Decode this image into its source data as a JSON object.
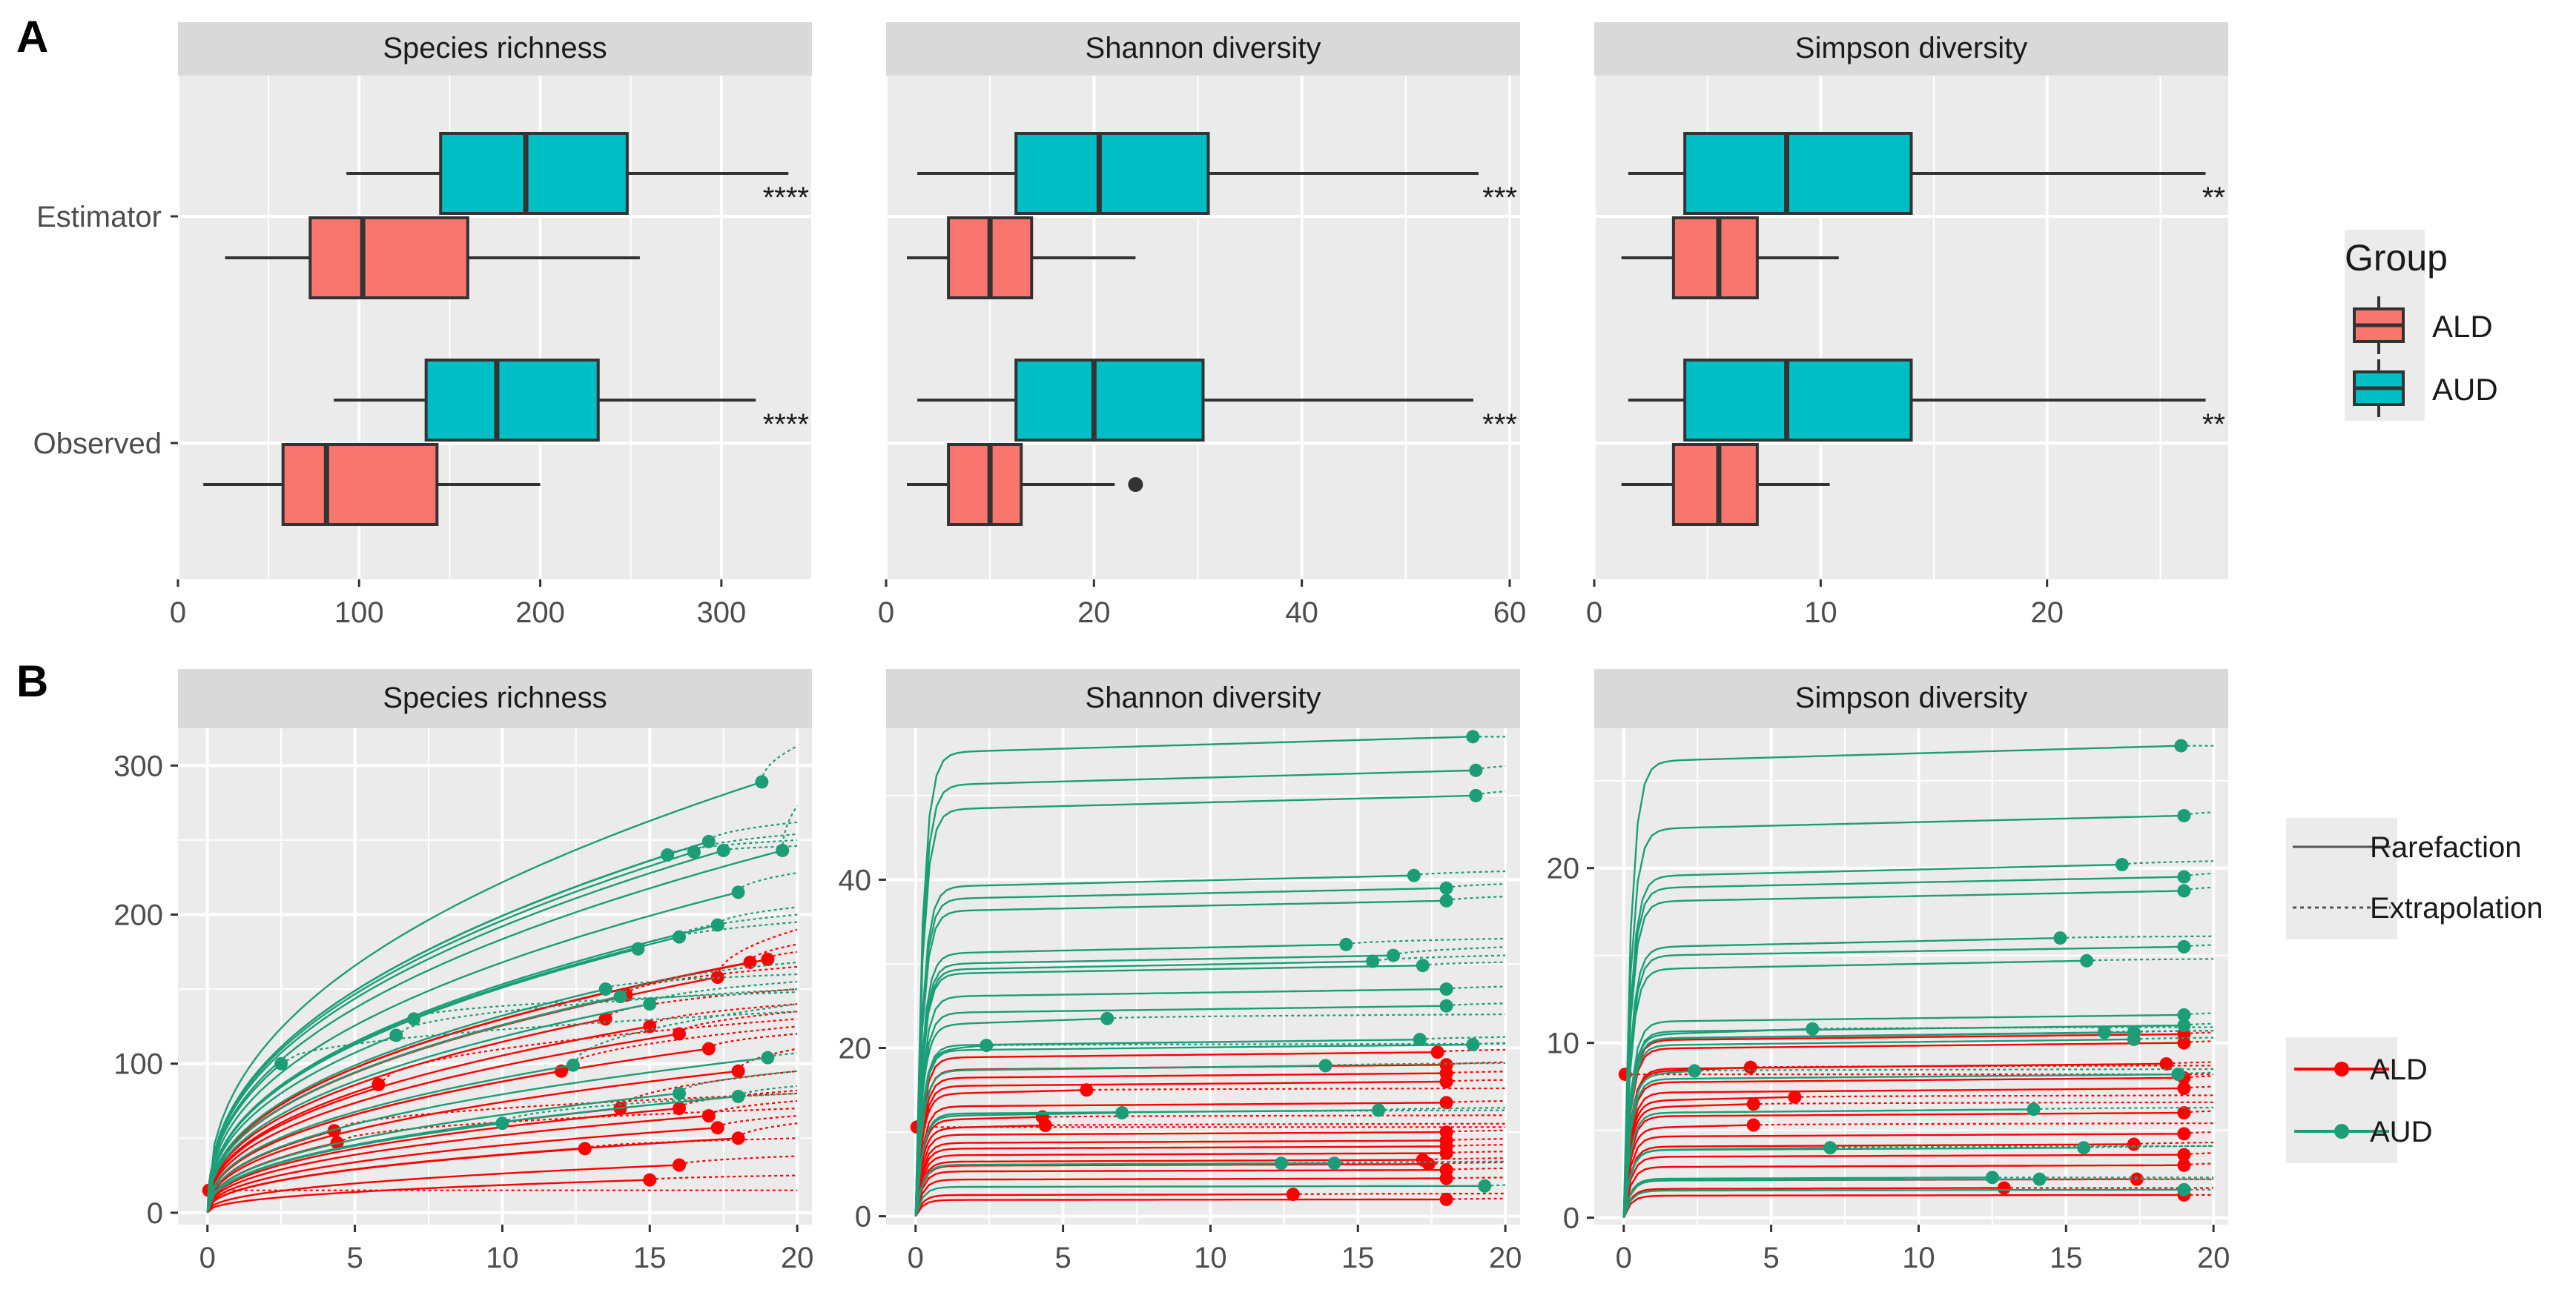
{
  "figure": {
    "panel_a_label": "A",
    "panel_b_label": "B",
    "legend_a_title": "Group",
    "legend_line_items": [
      "Rarefaction",
      "Extrapolation"
    ],
    "groups": [
      "ALD",
      "AUD"
    ],
    "colors": {
      "box_ald": "#F8766D",
      "box_aud": "#00BFC4",
      "line_ald": "#FF0000",
      "line_aud": "#1B9E77",
      "panel_bg": "#EBEBEB",
      "strip_bg": "#D9D9D9",
      "grid": "#FFFFFF"
    }
  },
  "chart_data": [
    {
      "type": "boxplot",
      "panel": "A",
      "title": "Species richness",
      "orientation": "horizontal",
      "categories": [
        "Estimator",
        "Observed"
      ],
      "xlim": [
        0,
        350
      ],
      "xticks": [
        0,
        100,
        200,
        300
      ],
      "boxes": [
        {
          "category": "Estimator",
          "group": "AUD",
          "min": 93,
          "q1": 145,
          "median": 192,
          "q3": 248,
          "max": 337,
          "outliers": []
        },
        {
          "category": "Estimator",
          "group": "ALD",
          "min": 26,
          "q1": 73,
          "median": 102,
          "q3": 160,
          "max": 255,
          "outliers": []
        },
        {
          "category": "Observed",
          "group": "AUD",
          "min": 86,
          "q1": 137,
          "median": 176,
          "q3": 232,
          "max": 319,
          "outliers": []
        },
        {
          "category": "Observed",
          "group": "ALD",
          "min": 14,
          "q1": 58,
          "median": 82,
          "q3": 143,
          "max": 200,
          "outliers": []
        }
      ],
      "significance": {
        "Estimator": "****",
        "Observed": "****"
      }
    },
    {
      "type": "boxplot",
      "panel": "A",
      "title": "Shannon diversity",
      "orientation": "horizontal",
      "categories": [
        "Estimator",
        "Observed"
      ],
      "xlim": [
        0,
        61
      ],
      "xticks": [
        0,
        20,
        40,
        60
      ],
      "boxes": [
        {
          "category": "Estimator",
          "group": "AUD",
          "min": 3,
          "q1": 12.5,
          "median": 20.5,
          "q3": 31,
          "max": 57,
          "outliers": []
        },
        {
          "category": "Estimator",
          "group": "ALD",
          "min": 2,
          "q1": 6,
          "median": 10,
          "q3": 14,
          "max": 24,
          "outliers": []
        },
        {
          "category": "Observed",
          "group": "AUD",
          "min": 3,
          "q1": 12.5,
          "median": 20,
          "q3": 30.5,
          "max": 56.5,
          "outliers": []
        },
        {
          "category": "Observed",
          "group": "ALD",
          "min": 2,
          "q1": 6,
          "median": 10,
          "q3": 13,
          "max": 22,
          "outliers": [
            24
          ]
        }
      ],
      "significance": {
        "Estimator": "***",
        "Observed": "***"
      }
    },
    {
      "type": "boxplot",
      "panel": "A",
      "title": "Simpson diversity",
      "orientation": "horizontal",
      "categories": [
        "Estimator",
        "Observed"
      ],
      "xlim": [
        0,
        28
      ],
      "xticks": [
        0,
        10,
        20
      ],
      "boxes": [
        {
          "category": "Estimator",
          "group": "AUD",
          "min": 1.5,
          "q1": 4,
          "median": 8.5,
          "q3": 14,
          "max": 27,
          "outliers": []
        },
        {
          "category": "Estimator",
          "group": "ALD",
          "min": 1.2,
          "q1": 3.5,
          "median": 5.5,
          "q3": 7.2,
          "max": 10.8,
          "outliers": []
        },
        {
          "category": "Observed",
          "group": "AUD",
          "min": 1.5,
          "q1": 4,
          "median": 8.5,
          "q3": 14,
          "max": 27,
          "outliers": []
        },
        {
          "category": "Observed",
          "group": "ALD",
          "min": 1.2,
          "q1": 3.5,
          "median": 5.5,
          "q3": 7.2,
          "max": 10.4,
          "outliers": []
        }
      ],
      "significance": {
        "Estimator": "**",
        "Observed": "**"
      }
    },
    {
      "type": "line",
      "panel": "B",
      "title": "Species richness",
      "xlim": [
        -1,
        20.5
      ],
      "ylim": [
        -8,
        325
      ],
      "xticks": [
        0,
        5,
        10,
        15,
        20
      ],
      "yticks": [
        0,
        100,
        200,
        300
      ],
      "curve_kind": "power",
      "curves": [
        {
          "group": "AUD",
          "n": 18.8,
          "obs": 289,
          "end": 313
        },
        {
          "group": "AUD",
          "n": 19.5,
          "obs": 243,
          "end": 273
        },
        {
          "group": "AUD",
          "n": 17.0,
          "obs": 249,
          "end": 262
        },
        {
          "group": "AUD",
          "n": 16.5,
          "obs": 242,
          "end": 254
        },
        {
          "group": "AUD",
          "n": 15.6,
          "obs": 240,
          "end": 250
        },
        {
          "group": "AUD",
          "n": 17.5,
          "obs": 243,
          "end": 246
        },
        {
          "group": "AUD",
          "n": 18.0,
          "obs": 215,
          "end": 228
        },
        {
          "group": "AUD",
          "n": 17.3,
          "obs": 193,
          "end": 205
        },
        {
          "group": "AUD",
          "n": 16.0,
          "obs": 185,
          "end": 200
        },
        {
          "group": "AUD",
          "n": 14.6,
          "obs": 177,
          "end": 195
        },
        {
          "group": "AUD",
          "n": 14.0,
          "obs": 145,
          "end": 168
        },
        {
          "group": "AUD",
          "n": 13.5,
          "obs": 150,
          "end": 160
        },
        {
          "group": "AUD",
          "n": 15.0,
          "obs": 140,
          "end": 155
        },
        {
          "group": "AUD",
          "n": 6.4,
          "obs": 119,
          "end": 150
        },
        {
          "group": "AUD",
          "n": 7.0,
          "obs": 130,
          "end": 148
        },
        {
          "group": "AUD",
          "n": 12.4,
          "obs": 99,
          "end": 140
        },
        {
          "group": "AUD",
          "n": 19.0,
          "obs": 104,
          "end": 107
        },
        {
          "group": "AUD",
          "n": 2.5,
          "obs": 100,
          "end": 135
        },
        {
          "group": "AUD",
          "n": 16.0,
          "obs": 80,
          "end": 95
        },
        {
          "group": "AUD",
          "n": 18.0,
          "obs": 78,
          "end": 85
        },
        {
          "group": "AUD",
          "n": 10.0,
          "obs": 60,
          "end": 80
        },
        {
          "group": "ALD",
          "n": 17.3,
          "obs": 158,
          "end": 190
        },
        {
          "group": "ALD",
          "n": 18.4,
          "obs": 168,
          "end": 180
        },
        {
          "group": "ALD",
          "n": 19.0,
          "obs": 170,
          "end": 175
        },
        {
          "group": "ALD",
          "n": 14.2,
          "obs": 146,
          "end": 165
        },
        {
          "group": "ALD",
          "n": 13.5,
          "obs": 130,
          "end": 150
        },
        {
          "group": "ALD",
          "n": 15.0,
          "obs": 125,
          "end": 140
        },
        {
          "group": "ALD",
          "n": 16.0,
          "obs": 120,
          "end": 135
        },
        {
          "group": "ALD",
          "n": 5.8,
          "obs": 86,
          "end": 130
        },
        {
          "group": "ALD",
          "n": 12.0,
          "obs": 95,
          "end": 125
        },
        {
          "group": "ALD",
          "n": 17.0,
          "obs": 110,
          "end": 120
        },
        {
          "group": "ALD",
          "n": 18.0,
          "obs": 95,
          "end": 110
        },
        {
          "group": "ALD",
          "n": 14.0,
          "obs": 70,
          "end": 95
        },
        {
          "group": "ALD",
          "n": 16.0,
          "obs": 70,
          "end": 82
        },
        {
          "group": "ALD",
          "n": 4.3,
          "obs": 55,
          "end": 80
        },
        {
          "group": "ALD",
          "n": 17.0,
          "obs": 65,
          "end": 75
        },
        {
          "group": "ALD",
          "n": 4.4,
          "obs": 47,
          "end": 70
        },
        {
          "group": "ALD",
          "n": 17.3,
          "obs": 57,
          "end": 65
        },
        {
          "group": "ALD",
          "n": 18.0,
          "obs": 50,
          "end": 60
        },
        {
          "group": "ALD",
          "n": 12.8,
          "obs": 43,
          "end": 50
        },
        {
          "group": "ALD",
          "n": 16.0,
          "obs": 32,
          "end": 38
        },
        {
          "group": "ALD",
          "n": 15.0,
          "obs": 22,
          "end": 25
        },
        {
          "group": "ALD",
          "n": 0.05,
          "obs": 15,
          "end": 15
        }
      ]
    },
    {
      "type": "line",
      "panel": "B",
      "title": "Shannon diversity",
      "xlim": [
        -1,
        20.5
      ],
      "ylim": [
        -1,
        58
      ],
      "xticks": [
        0,
        5,
        10,
        15,
        20
      ],
      "yticks": [
        0,
        20,
        40
      ],
      "curve_kind": "saturating",
      "curves": [
        {
          "group": "AUD",
          "n": 18.9,
          "obs": 57,
          "end": 57
        },
        {
          "group": "AUD",
          "n": 19.0,
          "obs": 53,
          "end": 53.5
        },
        {
          "group": "AUD",
          "n": 19.0,
          "obs": 50,
          "end": 50.5
        },
        {
          "group": "AUD",
          "n": 16.9,
          "obs": 40.5,
          "end": 41
        },
        {
          "group": "AUD",
          "n": 18.0,
          "obs": 39,
          "end": 39.5
        },
        {
          "group": "AUD",
          "n": 18.0,
          "obs": 37.5,
          "end": 38
        },
        {
          "group": "AUD",
          "n": 14.6,
          "obs": 32.3,
          "end": 33
        },
        {
          "group": "AUD",
          "n": 16.2,
          "obs": 31,
          "end": 32
        },
        {
          "group": "AUD",
          "n": 15.5,
          "obs": 30.3,
          "end": 31
        },
        {
          "group": "AUD",
          "n": 17.2,
          "obs": 29.8,
          "end": 30.2
        },
        {
          "group": "AUD",
          "n": 18.0,
          "obs": 27,
          "end": 27.3
        },
        {
          "group": "AUD",
          "n": 18.0,
          "obs": 25,
          "end": 25.3
        },
        {
          "group": "AUD",
          "n": 6.5,
          "obs": 23.5,
          "end": 24
        },
        {
          "group": "AUD",
          "n": 17.1,
          "obs": 21,
          "end": 21.3
        },
        {
          "group": "AUD",
          "n": 18.9,
          "obs": 20.4,
          "end": 20.6
        },
        {
          "group": "AUD",
          "n": 2.4,
          "obs": 20.3,
          "end": 20.5
        },
        {
          "group": "AUD",
          "n": 13.9,
          "obs": 17.9,
          "end": 18.2
        },
        {
          "group": "AUD",
          "n": 15.7,
          "obs": 12.6,
          "end": 12.9
        },
        {
          "group": "AUD",
          "n": 7.0,
          "obs": 12.3,
          "end": 12.6
        },
        {
          "group": "AUD",
          "n": 12.4,
          "obs": 6.3,
          "end": 6.5
        },
        {
          "group": "AUD",
          "n": 14.2,
          "obs": 6.3,
          "end": 6.5
        },
        {
          "group": "AUD",
          "n": 19.3,
          "obs": 3.6,
          "end": 3.7
        },
        {
          "group": "ALD",
          "n": 17.7,
          "obs": 19.5,
          "end": 19.8
        },
        {
          "group": "ALD",
          "n": 18.0,
          "obs": 18,
          "end": 18.3
        },
        {
          "group": "ALD",
          "n": 18.0,
          "obs": 17,
          "end": 17.2
        },
        {
          "group": "ALD",
          "n": 18.0,
          "obs": 16,
          "end": 16.2
        },
        {
          "group": "ALD",
          "n": 5.8,
          "obs": 15,
          "end": 15.2
        },
        {
          "group": "ALD",
          "n": 18.0,
          "obs": 13.5,
          "end": 13.7
        },
        {
          "group": "ALD",
          "n": 4.3,
          "obs": 11.8,
          "end": 12
        },
        {
          "group": "ALD",
          "n": 4.4,
          "obs": 10.8,
          "end": 11
        },
        {
          "group": "ALD",
          "n": 18.0,
          "obs": 10,
          "end": 10.2
        },
        {
          "group": "ALD",
          "n": 18.0,
          "obs": 9,
          "end": 9.2
        },
        {
          "group": "ALD",
          "n": 18.0,
          "obs": 8.3,
          "end": 8.5
        },
        {
          "group": "ALD",
          "n": 18.0,
          "obs": 7.5,
          "end": 7.7
        },
        {
          "group": "ALD",
          "n": 17.2,
          "obs": 6.7,
          "end": 6.9
        },
        {
          "group": "ALD",
          "n": 17.4,
          "obs": 6.2,
          "end": 6.4
        },
        {
          "group": "ALD",
          "n": 18.0,
          "obs": 5.5,
          "end": 5.7
        },
        {
          "group": "ALD",
          "n": 18.0,
          "obs": 4.5,
          "end": 4.6
        },
        {
          "group": "ALD",
          "n": 12.8,
          "obs": 2.6,
          "end": 2.7
        },
        {
          "group": "ALD",
          "n": 18.0,
          "obs": 2.0,
          "end": 2.1
        },
        {
          "group": "ALD",
          "n": 0.05,
          "obs": 10.6,
          "end": 10.6
        }
      ]
    },
    {
      "type": "line",
      "panel": "B",
      "title": "Simpson diversity",
      "xlim": [
        -1,
        20.5
      ],
      "ylim": [
        -0.4,
        28
      ],
      "xticks": [
        0,
        5,
        10,
        15,
        20
      ],
      "yticks": [
        0,
        10,
        20
      ],
      "curve_kind": "saturating",
      "curves": [
        {
          "group": "AUD",
          "n": 18.9,
          "obs": 27,
          "end": 27
        },
        {
          "group": "AUD",
          "n": 19.0,
          "obs": 23,
          "end": 23.2
        },
        {
          "group": "AUD",
          "n": 16.9,
          "obs": 20.2,
          "end": 20.4
        },
        {
          "group": "AUD",
          "n": 19.0,
          "obs": 19.5,
          "end": 19.7
        },
        {
          "group": "AUD",
          "n": 19.0,
          "obs": 18.7,
          "end": 18.9
        },
        {
          "group": "AUD",
          "n": 14.8,
          "obs": 16,
          "end": 16.1
        },
        {
          "group": "AUD",
          "n": 19.0,
          "obs": 15.5,
          "end": 15.6
        },
        {
          "group": "AUD",
          "n": 15.7,
          "obs": 14.7,
          "end": 14.8
        },
        {
          "group": "AUD",
          "n": 19.0,
          "obs": 11.6,
          "end": 11.7
        },
        {
          "group": "AUD",
          "n": 19.0,
          "obs": 11.0,
          "end": 11.1
        },
        {
          "group": "AUD",
          "n": 6.4,
          "obs": 10.8,
          "end": 10.9
        },
        {
          "group": "AUD",
          "n": 16.3,
          "obs": 10.6,
          "end": 10.7
        },
        {
          "group": "AUD",
          "n": 17.3,
          "obs": 10.6,
          "end": 10.7
        },
        {
          "group": "AUD",
          "n": 17.3,
          "obs": 10.2,
          "end": 10.3
        },
        {
          "group": "AUD",
          "n": 2.4,
          "obs": 8.4,
          "end": 8.5
        },
        {
          "group": "AUD",
          "n": 18.8,
          "obs": 8.2,
          "end": 8.3
        },
        {
          "group": "AUD",
          "n": 13.9,
          "obs": 6.2,
          "end": 6.3
        },
        {
          "group": "AUD",
          "n": 7.0,
          "obs": 4.0,
          "end": 4.1
        },
        {
          "group": "AUD",
          "n": 15.6,
          "obs": 4.0,
          "end": 4.1
        },
        {
          "group": "AUD",
          "n": 12.5,
          "obs": 2.3,
          "end": 2.3
        },
        {
          "group": "AUD",
          "n": 14.1,
          "obs": 2.2,
          "end": 2.2
        },
        {
          "group": "AUD",
          "n": 19.0,
          "obs": 1.6,
          "end": 1.6
        },
        {
          "group": "ALD",
          "n": 19.0,
          "obs": 10.5,
          "end": 10.6
        },
        {
          "group": "ALD",
          "n": 19.0,
          "obs": 10.0,
          "end": 10.1
        },
        {
          "group": "ALD",
          "n": 18.4,
          "obs": 8.8,
          "end": 8.9
        },
        {
          "group": "ALD",
          "n": 4.3,
          "obs": 8.6,
          "end": 8.7
        },
        {
          "group": "ALD",
          "n": 19.0,
          "obs": 8.0,
          "end": 8.1
        },
        {
          "group": "ALD",
          "n": 19.0,
          "obs": 7.4,
          "end": 7.5
        },
        {
          "group": "ALD",
          "n": 5.8,
          "obs": 6.9,
          "end": 7.0
        },
        {
          "group": "ALD",
          "n": 4.4,
          "obs": 6.5,
          "end": 6.6
        },
        {
          "group": "ALD",
          "n": 19.0,
          "obs": 6.0,
          "end": 6.1
        },
        {
          "group": "ALD",
          "n": 4.4,
          "obs": 5.3,
          "end": 5.4
        },
        {
          "group": "ALD",
          "n": 19.0,
          "obs": 4.8,
          "end": 4.9
        },
        {
          "group": "ALD",
          "n": 17.3,
          "obs": 4.2,
          "end": 4.3
        },
        {
          "group": "ALD",
          "n": 19.0,
          "obs": 3.6,
          "end": 3.7
        },
        {
          "group": "ALD",
          "n": 19.0,
          "obs": 3.0,
          "end": 3.1
        },
        {
          "group": "ALD",
          "n": 17.4,
          "obs": 2.2,
          "end": 2.2
        },
        {
          "group": "ALD",
          "n": 12.9,
          "obs": 1.7,
          "end": 1.7
        },
        {
          "group": "ALD",
          "n": 19.0,
          "obs": 1.3,
          "end": 1.3
        },
        {
          "group": "ALD",
          "n": 0.05,
          "obs": 8.2,
          "end": 8.2
        }
      ]
    }
  ]
}
